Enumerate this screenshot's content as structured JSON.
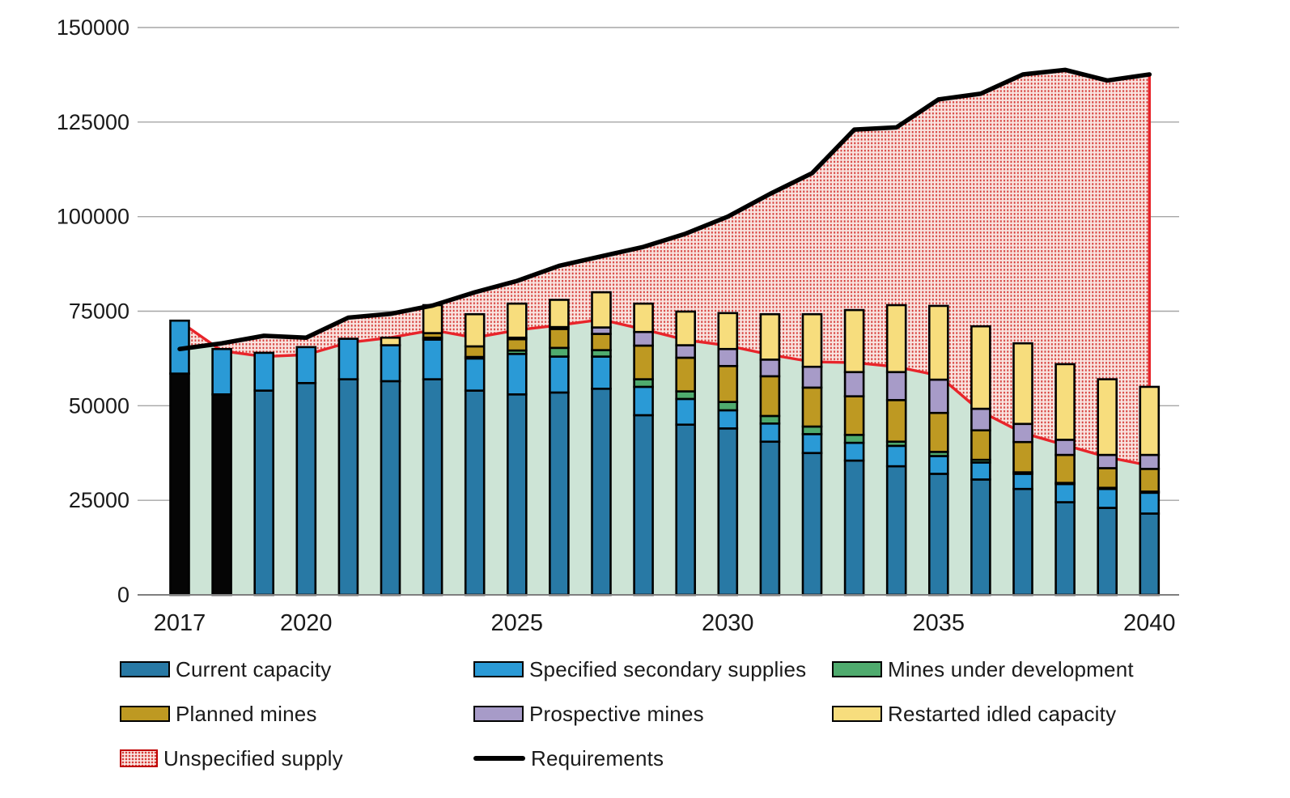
{
  "chart_data": {
    "type": "bar",
    "subtype": "stacked-bars-with-area-and-line",
    "x": [
      2017,
      2018,
      2019,
      2020,
      2021,
      2022,
      2023,
      2024,
      2025,
      2026,
      2027,
      2028,
      2029,
      2030,
      2031,
      2032,
      2033,
      2034,
      2035,
      2036,
      2037,
      2038,
      2039,
      2040
    ],
    "x_tick_labels": [
      "2017",
      "2020",
      "2025",
      "2030",
      "2035",
      "2040"
    ],
    "x_tick_years": [
      2017,
      2020,
      2025,
      2030,
      2035,
      2040
    ],
    "y_ticks": [
      0,
      25000,
      50000,
      75000,
      100000,
      125000,
      150000
    ],
    "y_tick_labels": [
      "0",
      "25000",
      "50000",
      "75000",
      "100000",
      "125000",
      "150000"
    ],
    "ylim": [
      0,
      150000
    ],
    "grid": true,
    "legend_position": "bottom",
    "historical_black_years": [
      2017,
      2018
    ],
    "series": [
      {
        "name": "Current capacity",
        "type": "bar",
        "color": "#2879a5",
        "historical_color": "#050505",
        "values": [
          58500,
          53000,
          54000,
          56000,
          57000,
          56500,
          57000,
          54000,
          53000,
          53500,
          54500,
          47500,
          45000,
          44000,
          40500,
          37500,
          35500,
          34000,
          32000,
          30500,
          28000,
          24500,
          23000,
          21500
        ]
      },
      {
        "name": "Specified secondary supplies",
        "type": "bar",
        "color": "#2a9ad6",
        "values": [
          14000,
          12000,
          10000,
          9500,
          10700,
          9500,
          10500,
          8500,
          10700,
          9500,
          8500,
          7500,
          6800,
          4800,
          4800,
          5000,
          4700,
          5400,
          4700,
          4500,
          4000,
          4800,
          5000,
          5500
        ]
      },
      {
        "name": "Mines under development",
        "type": "bar",
        "color": "#4fab6e",
        "values": [
          0,
          0,
          0,
          0,
          0,
          0,
          500,
          400,
          900,
          2300,
          1700,
          2000,
          2000,
          2200,
          2000,
          2000,
          2100,
          1100,
          1100,
          700,
          400,
          300,
          300,
          300
        ]
      },
      {
        "name": "Planned mines",
        "type": "bar",
        "color": "#be9922",
        "values": [
          0,
          0,
          0,
          0,
          0,
          0,
          1200,
          2800,
          3000,
          5000,
          4300,
          8900,
          8900,
          9500,
          10500,
          10300,
          10200,
          11000,
          10300,
          7800,
          8000,
          7400,
          5200,
          6000
        ]
      },
      {
        "name": "Prospective mines",
        "type": "bar",
        "color": "#a79bc8",
        "values": [
          0,
          0,
          0,
          0,
          0,
          0,
          0,
          0,
          400,
          500,
          1700,
          3600,
          3300,
          4500,
          4400,
          5500,
          6400,
          7400,
          8800,
          5700,
          4800,
          4000,
          3500,
          3700
        ]
      },
      {
        "name": "Restarted idled capacity",
        "type": "bar",
        "color": "#f7dd7d",
        "values": [
          0,
          0,
          0,
          0,
          0,
          2000,
          7400,
          8500,
          9000,
          7200,
          9300,
          7500,
          8900,
          9500,
          12000,
          13900,
          16400,
          17700,
          19500,
          21800,
          21300,
          20000,
          20000,
          18000
        ]
      },
      {
        "name": "Specified supply area (green band top / red boundary)",
        "type": "area",
        "fill": "#cde4d6",
        "edge_color": "#e8242a",
        "values": [
          72300,
          64500,
          63000,
          63500,
          66700,
          68000,
          70000,
          68000,
          70000,
          71300,
          72800,
          70200,
          67400,
          65900,
          63500,
          61600,
          61400,
          60300,
          58000,
          48500,
          42800,
          39600,
          36400,
          34200
        ]
      },
      {
        "name": "Unspecified supply",
        "type": "area-gap",
        "pattern": "red-dots",
        "pattern_dot_color": "#d63c38",
        "pattern_bg_color": "#f9e5e1",
        "border_color": "#e8242a",
        "note": "region between Requirements line and specified-supply boundary"
      },
      {
        "name": "Requirements",
        "type": "line",
        "color": "#000000",
        "values": [
          65000,
          66500,
          68500,
          68000,
          73300,
          74300,
          76500,
          80000,
          83000,
          87000,
          89500,
          92000,
          95500,
          100000,
          106000,
          111500,
          123000,
          123600,
          131000,
          132500,
          137600,
          138800,
          136000,
          137600
        ]
      }
    ]
  },
  "legend": {
    "items": [
      {
        "label": "Current capacity",
        "swatch": "box",
        "color": "#2879a5"
      },
      {
        "label": "Specified secondary supplies",
        "swatch": "box",
        "color": "#2a9ad6"
      },
      {
        "label": "Mines under development",
        "swatch": "box",
        "color": "#4fab6e"
      },
      {
        "label": "Planned mines",
        "swatch": "box",
        "color": "#be9922"
      },
      {
        "label": "Prospective mines",
        "swatch": "box",
        "color": "#a79bc8"
      },
      {
        "label": "Restarted idled capacity",
        "swatch": "box",
        "color": "#f7dd7d"
      },
      {
        "label": "Unspecified supply",
        "swatch": "hatch",
        "color": "#d63c38"
      },
      {
        "label": "Requirements",
        "swatch": "line",
        "color": "#000000"
      }
    ]
  },
  "axes": {
    "y_label_color": "#1a1a1a",
    "gridline_color": "#a6a6a6",
    "axis_line_color": "#7f7f7f"
  }
}
